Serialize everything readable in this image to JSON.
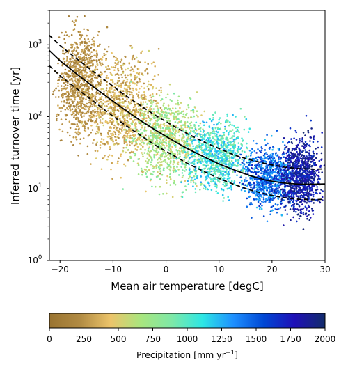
{
  "colors": {
    "curve": "#000000",
    "colormap": [
      "#9a7431",
      "#b18b43",
      "#ecc46a",
      "#a8e67f",
      "#7ee8a7",
      "#2de7e4",
      "#1e90ff",
      "#0047d4",
      "#1f10b7",
      "#122c6b"
    ]
  },
  "chart_data": [
    {
      "type": "scatter",
      "xlabel": "Mean air temperature [degC]",
      "ylabel": "Inferred turnover time [yr]",
      "xlim": [
        -22,
        30
      ],
      "ylim": [
        1,
        3000
      ],
      "y_scale": "log",
      "x_ticks": [
        -20,
        -10,
        0,
        10,
        20,
        30
      ],
      "x_tick_labels": [
        "−20",
        "−10",
        "0",
        "10",
        "20",
        "30"
      ],
      "y_ticks": [
        1,
        10,
        100,
        1000
      ],
      "y_tick_labels": [
        "10",
        "10",
        "10",
        "10"
      ],
      "y_tick_exponents": [
        "0",
        "1",
        "2",
        "3"
      ],
      "grid": false,
      "color_encoding": "Precipitation [mm yr^-1]",
      "clusters": [
        {
          "x_range": [
            -20,
            -12
          ],
          "y_range": [
            40,
            2000
          ],
          "precip_range": [
            100,
            350
          ]
        },
        {
          "x_range": [
            -14,
            -2
          ],
          "y_range": [
            20,
            900
          ],
          "precip_range": [
            200,
            550
          ]
        },
        {
          "x_range": [
            -6,
            6
          ],
          "y_range": [
            10,
            250
          ],
          "precip_range": [
            450,
            900
          ]
        },
        {
          "x_range": [
            4,
            15
          ],
          "y_range": [
            8,
            100
          ],
          "precip_range": [
            800,
            1300
          ]
        },
        {
          "x_range": [
            15,
            24
          ],
          "y_range": [
            5,
            40
          ],
          "precip_range": [
            1200,
            1700
          ]
        },
        {
          "x_range": [
            22,
            29
          ],
          "y_range": [
            4,
            60
          ],
          "precip_range": [
            1600,
            2000
          ]
        }
      ],
      "series": [
        {
          "style": "solid",
          "x": [
            -22,
            -20,
            -17,
            -14,
            -11,
            -8,
            -5,
            -2,
            1,
            4,
            7,
            10,
            13,
            16,
            19,
            22,
            25,
            28,
            30
          ],
          "y": [
            830,
            600,
            400,
            270,
            185,
            128,
            90,
            65,
            48,
            36,
            28,
            22,
            18,
            15,
            13,
            12,
            11.5,
            11.5,
            11.6
          ]
        },
        {
          "style": "dashed",
          "x": [
            -22,
            -20,
            -17,
            -14,
            -11,
            -8,
            -5,
            -2,
            1,
            4,
            7,
            10,
            13,
            16,
            19,
            22,
            25,
            28,
            30
          ],
          "y": [
            1350,
            980,
            650,
            440,
            300,
            205,
            145,
            104,
            77,
            58,
            45,
            36,
            29,
            25,
            22,
            20,
            19,
            18.6,
            18.8
          ]
        },
        {
          "style": "dashed",
          "x": [
            -22,
            -20,
            -17,
            -14,
            -11,
            -8,
            -5,
            -2,
            1,
            4,
            7,
            10,
            13,
            16,
            19,
            22,
            25,
            28,
            30
          ],
          "y": [
            510,
            370,
            250,
            170,
            115,
            79,
            56,
            40,
            30,
            22.5,
            17.5,
            13.8,
            11.3,
            9.5,
            8.3,
            7.5,
            7.1,
            7.0,
            7.1
          ]
        }
      ]
    },
    {
      "type": "heatmap",
      "xlabel": "Precipitation [mm yr",
      "xlabel_superscript": "−1",
      "xlabel_suffix": "]",
      "xlim": [
        0,
        2000
      ],
      "x_ticks": [
        0,
        250,
        500,
        750,
        1000,
        1250,
        1500,
        1750,
        2000
      ],
      "x_tick_labels": [
        "0",
        "250",
        "500",
        "750",
        "1000",
        "1250",
        "1500",
        "1750",
        "2000"
      ]
    }
  ]
}
